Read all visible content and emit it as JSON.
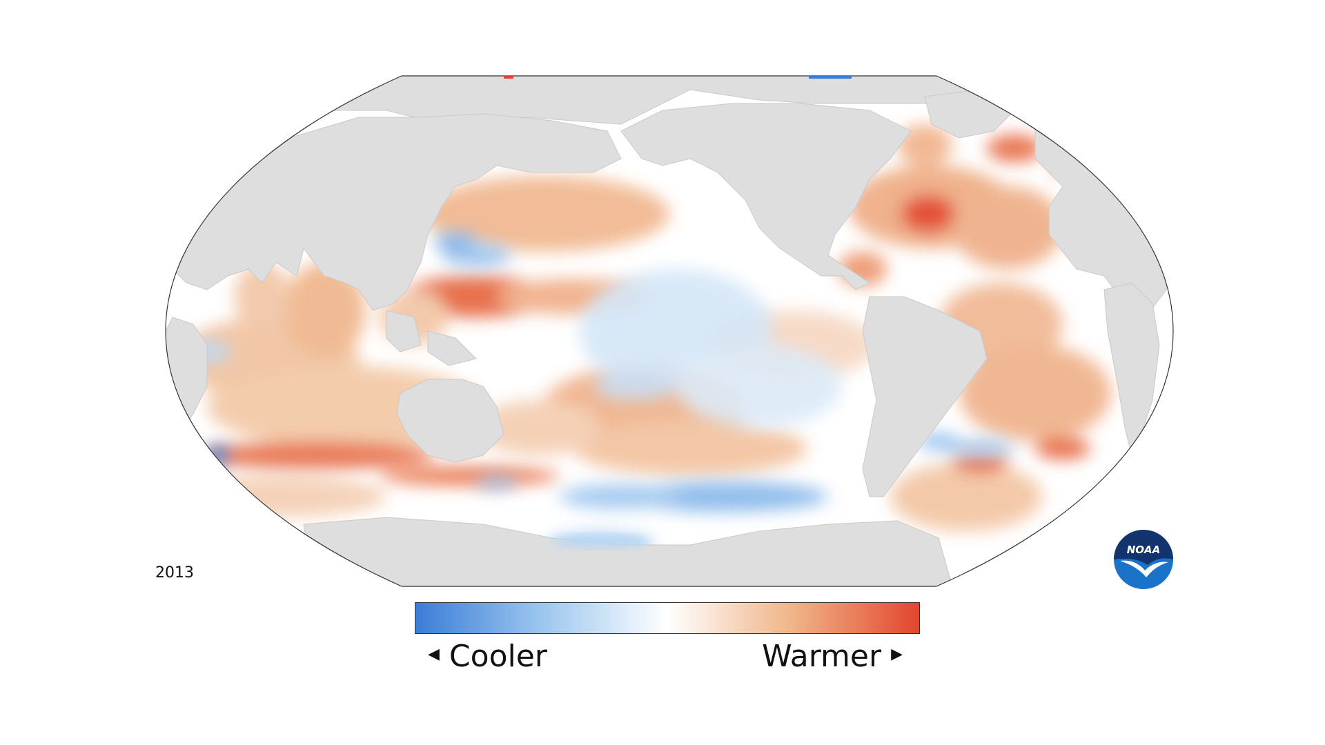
{
  "map": {
    "year": "2013",
    "projection": "robinson",
    "land_color": "#e0e0e0",
    "outline_color": "#333333"
  },
  "legend": {
    "cooler_label": "Cooler",
    "warmer_label": "Warmer",
    "left_arrow": "◀",
    "right_arrow": "▶",
    "gradient_colors": [
      "#3a7dd8",
      "#9cc6ee",
      "#ffffff",
      "#f0b487",
      "#e3462f"
    ]
  },
  "logo": {
    "text": "NOAA",
    "primary_color": "#1a73c8",
    "dark_color": "#12336e"
  }
}
